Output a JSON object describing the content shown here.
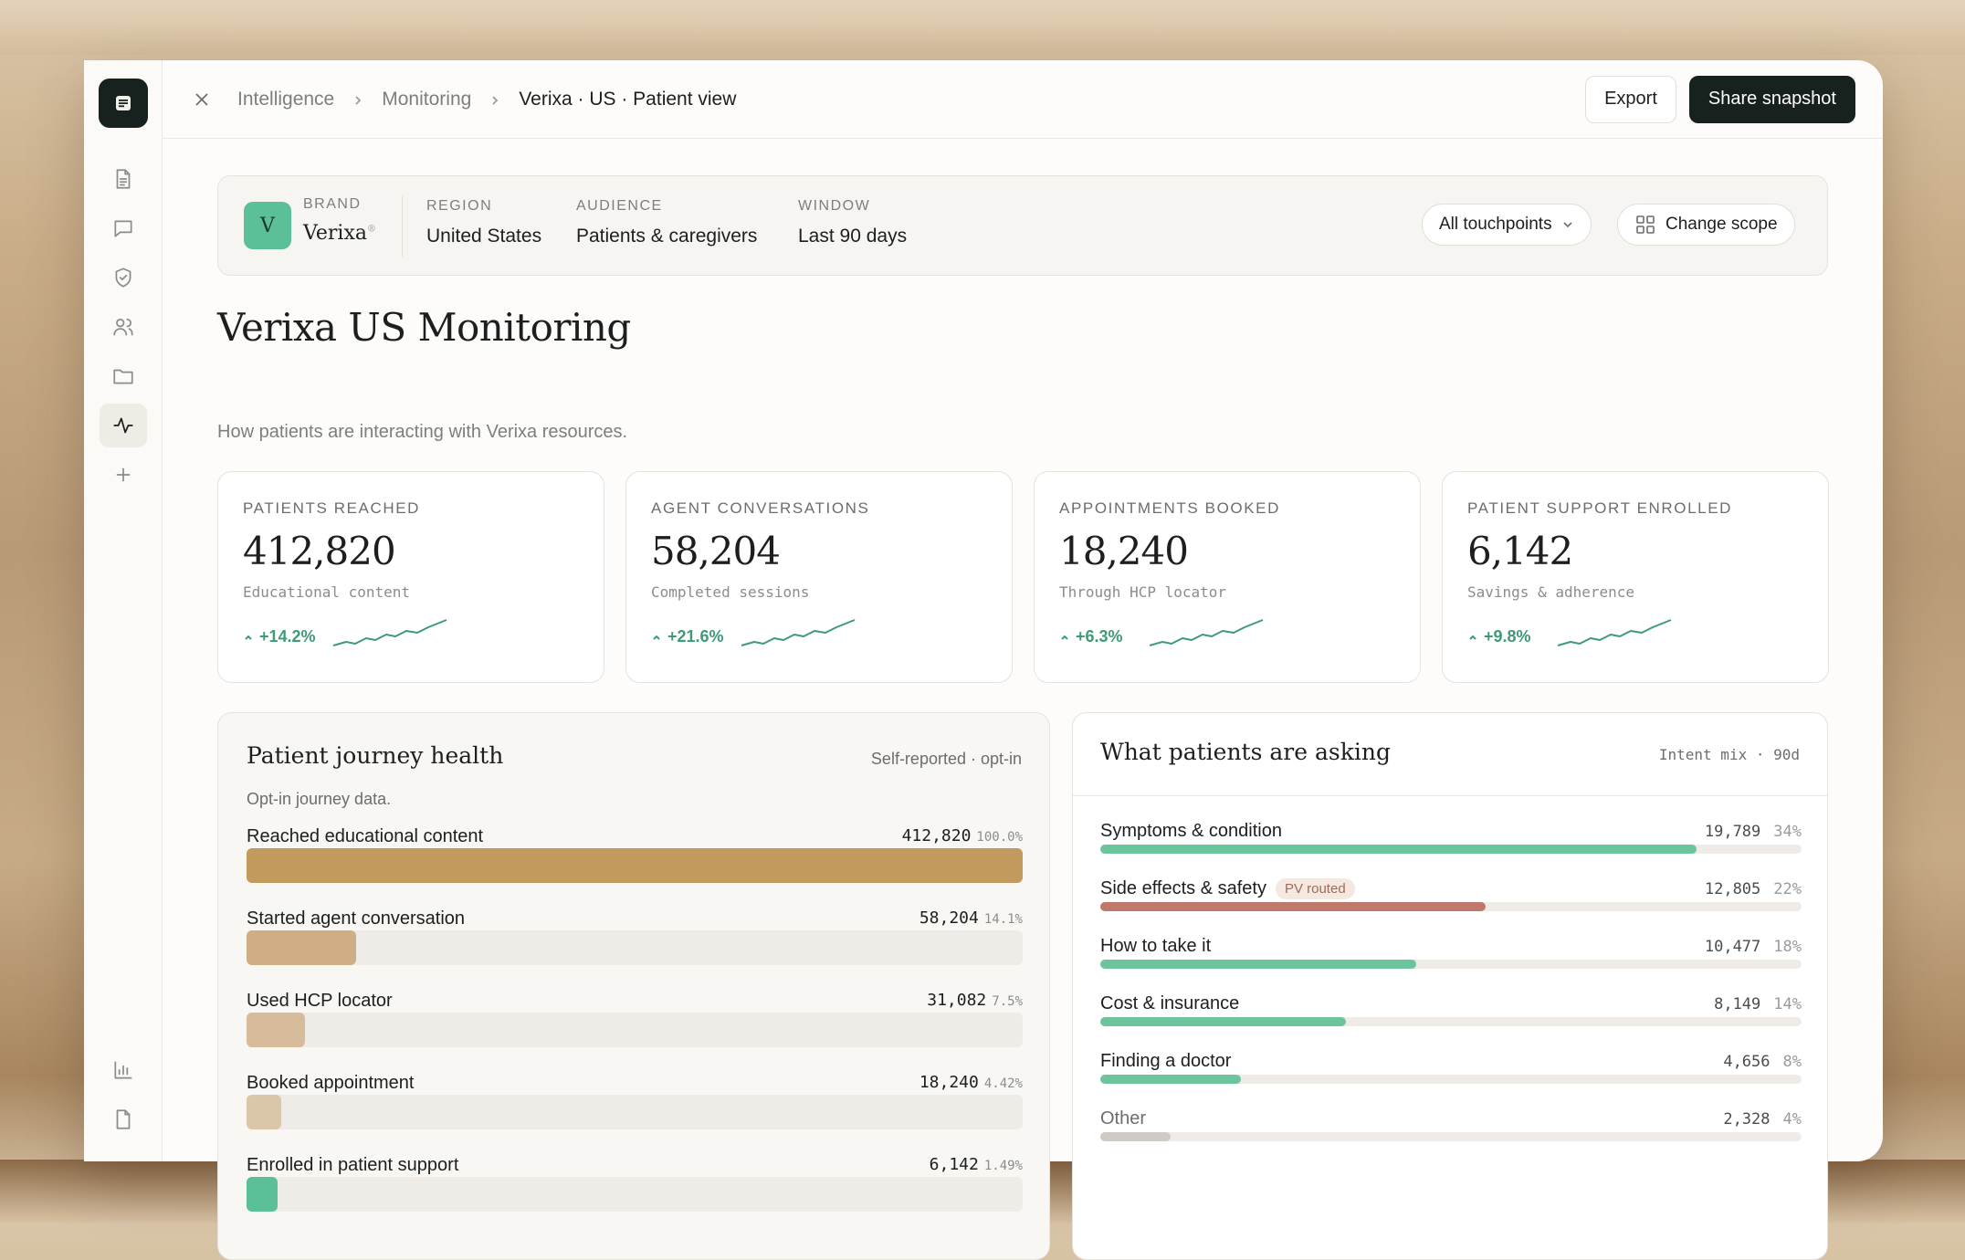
{
  "breadcrumb": [
    "Intelligence",
    "Monitoring",
    "Verixa · US · Patient view"
  ],
  "actions": {
    "export": "Export",
    "share": "Share snapshot"
  },
  "scope": {
    "brand_label": "BRAND",
    "brand_initial": "V",
    "brand_name": "Verixa",
    "region_label": "REGION",
    "region": "United States",
    "audience_label": "AUDIENCE",
    "audience": "Patients & caregivers",
    "window_label": "WINDOW",
    "window": "Last 90 days",
    "touchpoints": "All touchpoints",
    "change_scope": "Change scope"
  },
  "page": {
    "title": "Verixa US Monitoring",
    "subtitle": "How patients are interacting with Verixa resources."
  },
  "kpis": [
    {
      "label": "PATIENTS REACHED",
      "value": "412,820",
      "note": "Educational content",
      "delta": "+14.2%"
    },
    {
      "label": "AGENT CONVERSATIONS",
      "value": "58,204",
      "note": "Completed sessions",
      "delta": "+21.6%"
    },
    {
      "label": "APPOINTMENTS BOOKED",
      "value": "18,240",
      "note": "Through HCP locator",
      "delta": "+6.3%"
    },
    {
      "label": "PATIENT SUPPORT ENROLLED",
      "value": "6,142",
      "note": "Savings & adherence",
      "delta": "+9.8%"
    }
  ],
  "journey": {
    "title": "Patient journey health",
    "meta": "Self-reported · opt-in",
    "note": "Opt-in journey data.",
    "rows": [
      {
        "label": "Reached educational content",
        "count": "412,820",
        "pct": "100.0%",
        "share": 1.0,
        "color": "#c39a5e"
      },
      {
        "label": "Started agent conversation",
        "count": "58,204",
        "pct": "14.1%",
        "share": 0.141,
        "color": "#cfae86"
      },
      {
        "label": "Used HCP locator",
        "count": "31,082",
        "pct": "7.5%",
        "share": 0.075,
        "color": "#d6bc9a"
      },
      {
        "label": "Booked appointment",
        "count": "18,240",
        "pct": "4.42%",
        "share": 0.0442,
        "color": "#dcc6a9"
      },
      {
        "label": "Enrolled in patient support",
        "count": "6,142",
        "pct": "1.49%",
        "share": 0.0149,
        "color": "#5bbf97"
      }
    ]
  },
  "asking": {
    "title": "What patients are asking",
    "meta": "Intent mix · 90d",
    "rows": [
      {
        "label": "Symptoms & condition",
        "count": "19,789",
        "pct": "34%",
        "share": 0.85,
        "color": "#6cc49d",
        "badge": ""
      },
      {
        "label": "Side effects & safety",
        "count": "12,805",
        "pct": "22%",
        "share": 0.55,
        "color": "#c0786b",
        "badge": "PV routed"
      },
      {
        "label": "How to take it",
        "count": "10,477",
        "pct": "18%",
        "share": 0.45,
        "color": "#6cc49d",
        "badge": ""
      },
      {
        "label": "Cost & insurance",
        "count": "8,149",
        "pct": "14%",
        "share": 0.35,
        "color": "#6cc49d",
        "badge": ""
      },
      {
        "label": "Finding a doctor",
        "count": "4,656",
        "pct": "8%",
        "share": 0.2,
        "color": "#6cc49d",
        "badge": ""
      },
      {
        "label": "Other",
        "count": "2,328",
        "pct": "4%",
        "share": 0.1,
        "color": "#cfcbc4",
        "badge": ""
      }
    ]
  }
}
